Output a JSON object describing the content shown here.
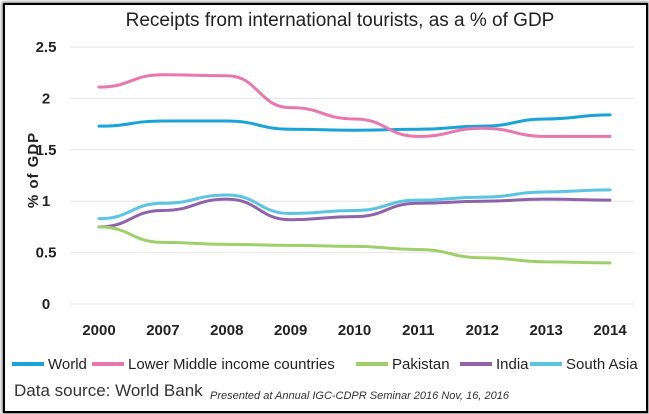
{
  "chart_data": {
    "type": "line",
    "title": "Receipts from international tourists, as a % of GDP",
    "xlabel": "",
    "ylabel": "% of GDP",
    "categories": [
      "2000",
      "2007",
      "2008",
      "2009",
      "2010",
      "2011",
      "2012",
      "2013",
      "2014"
    ],
    "ylim": [
      0,
      2.5
    ],
    "yticks": [
      "0",
      "0.5",
      "1",
      "1.5",
      "2",
      "2.5"
    ],
    "grid": true,
    "legend_position": "bottom",
    "series": [
      {
        "name": "World",
        "color": "#1aa3d9",
        "values": [
          1.73,
          1.78,
          1.78,
          1.7,
          1.69,
          1.7,
          1.73,
          1.8,
          1.84
        ]
      },
      {
        "name": "Lower Middle income countries",
        "color": "#e877b0",
        "values": [
          2.11,
          2.23,
          2.22,
          1.91,
          1.8,
          1.63,
          1.71,
          1.63,
          1.63
        ]
      },
      {
        "name": "Pakistan",
        "color": "#9fcf6b",
        "values": [
          0.75,
          0.6,
          0.58,
          0.57,
          0.56,
          0.53,
          0.45,
          0.41,
          0.4
        ]
      },
      {
        "name": "India",
        "color": "#8f62a9",
        "values": [
          0.75,
          0.91,
          1.02,
          0.82,
          0.85,
          0.98,
          1.0,
          1.02,
          1.01
        ]
      },
      {
        "name": "South Asia",
        "color": "#5cc4e3",
        "values": [
          0.83,
          0.98,
          1.06,
          0.88,
          0.91,
          1.01,
          1.04,
          1.09,
          1.11
        ]
      }
    ]
  },
  "source_text": "Data source: World Bank",
  "note_text": "Presented at Annual IGC-CDPR Seminar 2016 Nov, 16, 2016"
}
